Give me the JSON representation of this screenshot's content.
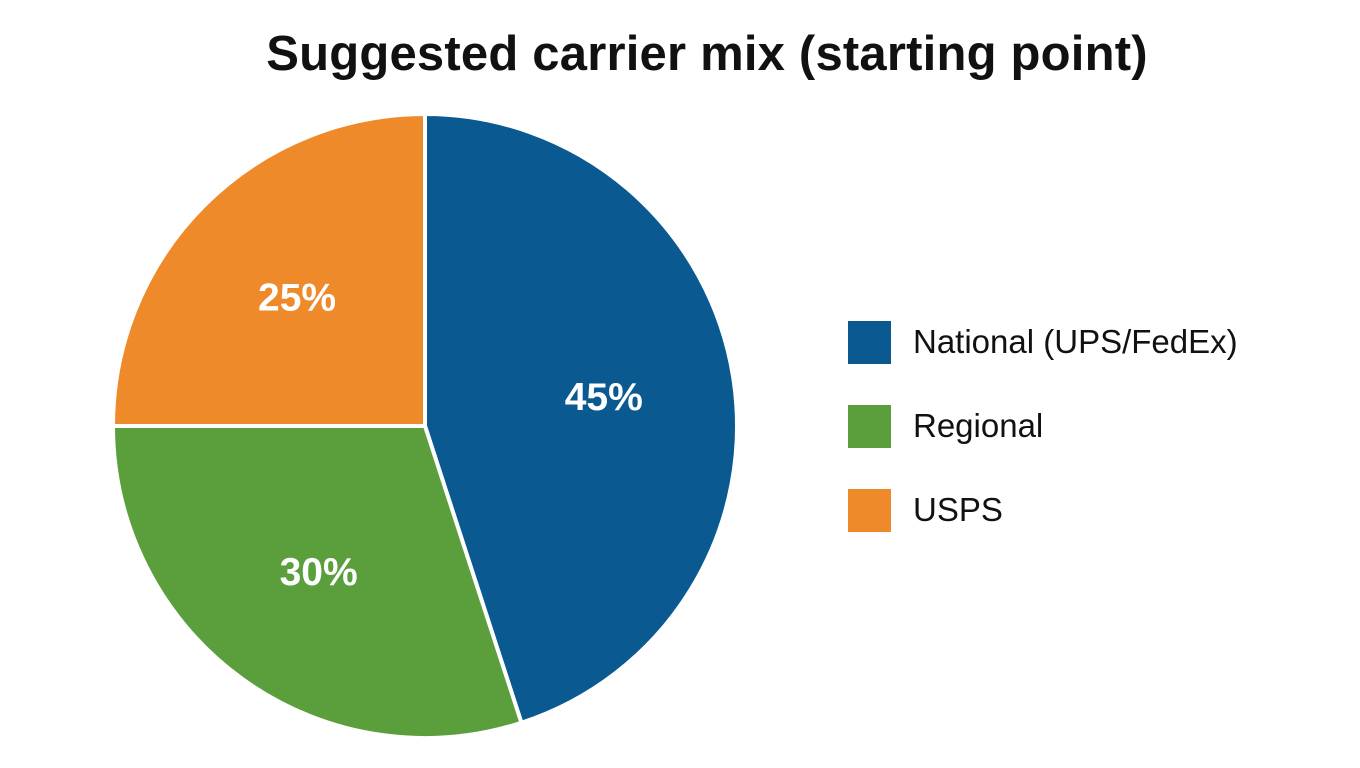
{
  "chart_data": {
    "type": "pie",
    "title": "Suggested carrier mix (starting point)",
    "slices": [
      {
        "label": "National (UPS/FedEx)",
        "value": 45,
        "display": "45%",
        "color": "#0a5a91"
      },
      {
        "label": "Regional",
        "value": 30,
        "display": "30%",
        "color": "#5b9f3d"
      },
      {
        "label": "USPS",
        "value": 25,
        "display": "25%",
        "color": "#ef8a2a"
      }
    ],
    "start_angle_deg": 0,
    "direction": "clockwise",
    "legend_position": "right"
  }
}
